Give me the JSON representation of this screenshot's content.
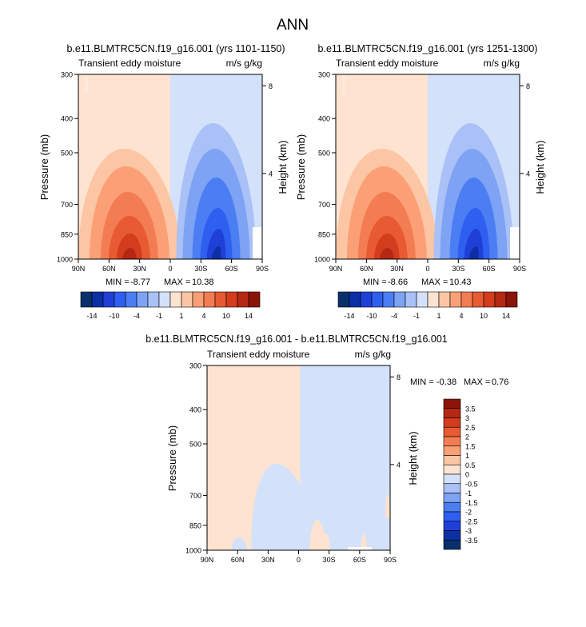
{
  "page_title": "ANN",
  "colors": {
    "negative": [
      "#08306b",
      "#0d2fa6",
      "#1f40d6",
      "#2f5ff0",
      "#4a7ef2",
      "#7ea2f4",
      "#a9c1f7",
      "#d3e1fb"
    ],
    "positive": [
      "#fde3d0",
      "#fcc5a3",
      "#fb9f77",
      "#f47c52",
      "#e85a31",
      "#d33c1c",
      "#b52813",
      "#8b1408"
    ]
  },
  "chart_data": [
    {
      "id": "panel1",
      "type": "contour",
      "title": "b.e11.BLMTRC5CN.f19_g16.001 (yrs 1101-1150)",
      "left_label": "Transient eddy moisture",
      "right_label": "m/s g/kg",
      "ylabel": "Pressure (mb)",
      "ylabel_right": "Height (km)",
      "x_ticks": [
        "90N",
        "60N",
        "30N",
        "0",
        "30S",
        "60S",
        "90S"
      ],
      "x_values": [
        90,
        60,
        30,
        0,
        -30,
        -60,
        -90
      ],
      "y_ticks": [
        300,
        400,
        500,
        700,
        850,
        1000
      ],
      "height_ticks": [
        8,
        4
      ],
      "min_label": "MIN = ",
      "min_value": "-8.77",
      "max_label": "MAX = ",
      "max_value": "10.38",
      "colorbar_labels": [
        "-14",
        "-10",
        "-4",
        "-1",
        "1",
        "4",
        "10",
        "14"
      ],
      "positive_center_lat": 40,
      "negative_center_lat": -45,
      "peak": 10.38,
      "trough": -8.77
    },
    {
      "id": "panel2",
      "type": "contour",
      "title": "b.e11.BLMTRC5CN.f19_g16.001 (yrs 1251-1300)",
      "left_label": "Transient eddy moisture",
      "right_label": "m/s g/kg",
      "ylabel": "Pressure (mb)",
      "ylabel_right": "Height (km)",
      "x_ticks": [
        "90N",
        "60N",
        "30N",
        "0",
        "30S",
        "60S",
        "90S"
      ],
      "x_values": [
        90,
        60,
        30,
        0,
        -30,
        -60,
        -90
      ],
      "y_ticks": [
        300,
        400,
        500,
        700,
        850,
        1000
      ],
      "height_ticks": [
        8,
        4
      ],
      "min_label": "MIN = ",
      "min_value": "-8.66",
      "max_label": "MAX = ",
      "max_value": "10.43",
      "colorbar_labels": [
        "-14",
        "-10",
        "-4",
        "-1",
        "1",
        "4",
        "10",
        "14"
      ],
      "positive_center_lat": 40,
      "negative_center_lat": -45,
      "peak": 10.43,
      "trough": -8.66
    },
    {
      "id": "panel3",
      "type": "contour",
      "title": "b.e11.BLMTRC5CN.f19_g16.001 - b.e11.BLMTRC5CN.f19_g16.001",
      "left_label": "Transient eddy moisture",
      "right_label": "m/s g/kg",
      "ylabel": "Pressure (mb)",
      "ylabel_right": "Height (km)",
      "x_ticks": [
        "90N",
        "60N",
        "30N",
        "0",
        "30S",
        "60S",
        "90S"
      ],
      "x_values": [
        90,
        60,
        30,
        0,
        -30,
        -60,
        -90
      ],
      "y_ticks": [
        300,
        400,
        500,
        700,
        850,
        1000
      ],
      "height_ticks": [
        8,
        4
      ],
      "min_label": "MIN = ",
      "min_value": "-0.38",
      "max_label": "MAX = ",
      "max_value": "0.76",
      "colorbar_labels": [
        "3.5",
        "3",
        "2.5",
        "2",
        "1.5",
        "1",
        "0.5",
        "0",
        "-0.5",
        "-1",
        "-1.5",
        "-2",
        "-2.5",
        "-3",
        "-3.5"
      ],
      "fill_north": "0 to 0.5",
      "fill_south": "-0.5 to 0"
    }
  ]
}
